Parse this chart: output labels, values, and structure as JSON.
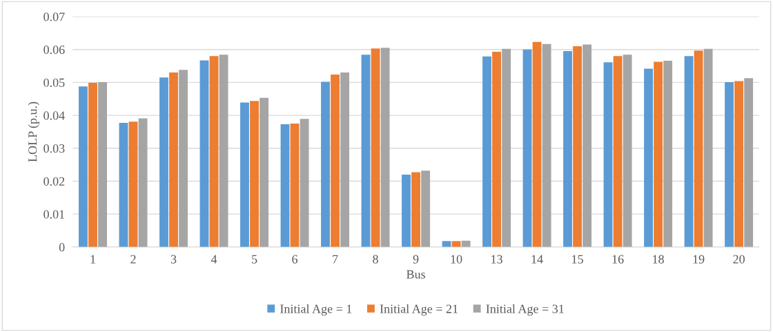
{
  "chart_data": {
    "type": "bar",
    "xlabel": "Bus",
    "ylabel": "LOLP (p.u.)",
    "categories": [
      "1",
      "2",
      "3",
      "4",
      "5",
      "6",
      "7",
      "8",
      "9",
      "10",
      "13",
      "14",
      "15",
      "16",
      "18",
      "19",
      "20"
    ],
    "series": [
      {
        "name": "Initial Age = 1",
        "color": "#5b9bd5",
        "values": [
          0.0488,
          0.0377,
          0.0515,
          0.0567,
          0.0439,
          0.0373,
          0.0502,
          0.0584,
          0.022,
          0.0018,
          0.0579,
          0.06,
          0.0595,
          0.0561,
          0.0542,
          0.058,
          0.0501
        ]
      },
      {
        "name": "Initial Age = 21",
        "color": "#ed7d31",
        "values": [
          0.0499,
          0.0381,
          0.053,
          0.058,
          0.0444,
          0.0375,
          0.0524,
          0.0603,
          0.0227,
          0.0018,
          0.0593,
          0.0623,
          0.061,
          0.058,
          0.0563,
          0.0597,
          0.0504
        ]
      },
      {
        "name": "Initial Age = 31",
        "color": "#a5a5a5",
        "values": [
          0.0501,
          0.0391,
          0.0538,
          0.0584,
          0.0453,
          0.0389,
          0.053,
          0.0605,
          0.0232,
          0.0019,
          0.0602,
          0.0617,
          0.0615,
          0.0584,
          0.0566,
          0.0602,
          0.0513
        ]
      }
    ],
    "ylim": [
      0,
      0.07
    ],
    "yticks": [
      0,
      0.01,
      0.02,
      0.03,
      0.04,
      0.05,
      0.06,
      0.07
    ],
    "grid": "y",
    "legend": "bottom"
  }
}
